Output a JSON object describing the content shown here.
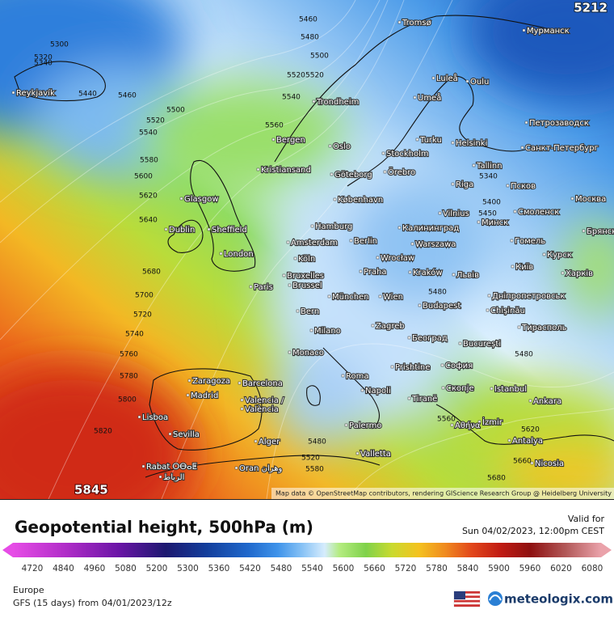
{
  "header": {
    "title": "Geopotential height, 500hPa (m)",
    "valid_label": "Valid for",
    "valid_time": "Sun 04/02/2023, 12:00pm CEST"
  },
  "map": {
    "max_label": "5845",
    "min_label": "5212",
    "attribution": "Map data © OpenStreetMap contributors, rendering GIScience Research Group @ Heidelberg University",
    "cities": [
      "Reykjavík",
      "Tromsø",
      "Мурманск",
      "Luleå",
      "Oulu",
      "Trondheim",
      "Umeå",
      "Петрозаводск",
      "Bergen",
      "Oslo",
      "Turku",
      "Helsinki",
      "Санкт-Петербург",
      "Stockholm",
      "Örebro",
      "Kristiansand",
      "Göteborg",
      "Tallinn",
      "Riga",
      "Псков",
      "Glasgow",
      "København",
      "Москва",
      "Vilnius",
      "Смоленск",
      "Hamburg",
      "Калининград",
      "Минск",
      "Dublin",
      "Sheffield",
      "Amsterdam",
      "Berlin",
      "Warszawa",
      "Гомель",
      "London",
      "Köln",
      "Wrocław",
      "Київ",
      "Bruxelles",
      "Brussel",
      "Praha",
      "Kraków",
      "Львів",
      "Paris",
      "München",
      "Wien",
      "Дніпропетровськ",
      "Budapest",
      "Chişinău",
      "Bern",
      "Milano",
      "Zagreb",
      "Тирасполь",
      "Београд",
      "Monaco",
      "București",
      "София",
      "Roma",
      "Prishtine",
      "Zaragoza",
      "Barcelona",
      "Madrid",
      "Napoli",
      "Istanbul",
      "Скопје",
      "Tiranë",
      "Ankara",
      "Valencia /",
      "València",
      "Lisboa",
      "Sevilla",
      "İzmir",
      "Αθήνα",
      "Palermo",
      "Antalya",
      "Alger",
      "Valletta",
      "Nicosia",
      "Rabat ⵔⴱⴰⵟ",
      "الرباط",
      "Oran وهران",
      "Курск",
      "Харків",
      "Брянск"
    ],
    "contour_labels": [
      5460,
      5480,
      5500,
      5520,
      5520,
      5540,
      5560,
      5500,
      5520,
      5540,
      5580,
      5600,
      5620,
      5640,
      5680,
      5700,
      5720,
      5740,
      5760,
      5780,
      5800,
      5820,
      5460,
      5300,
      5320,
      5340,
      5440,
      5400,
      5480,
      5620,
      5660,
      5680,
      5560,
      5480,
      5520,
      5340,
      5450,
      5480,
      5580
    ]
  },
  "colorbar": {
    "ticks": [
      4720,
      4840,
      4960,
      5080,
      5200,
      5300,
      5360,
      5420,
      5480,
      5540,
      5600,
      5660,
      5720,
      5780,
      5840,
      5900,
      5960,
      6020,
      6080
    ]
  },
  "footer": {
    "region": "Europe",
    "model": "GFS (15 days) from 04/01/2023/12z",
    "brand": "meteologix.com"
  }
}
